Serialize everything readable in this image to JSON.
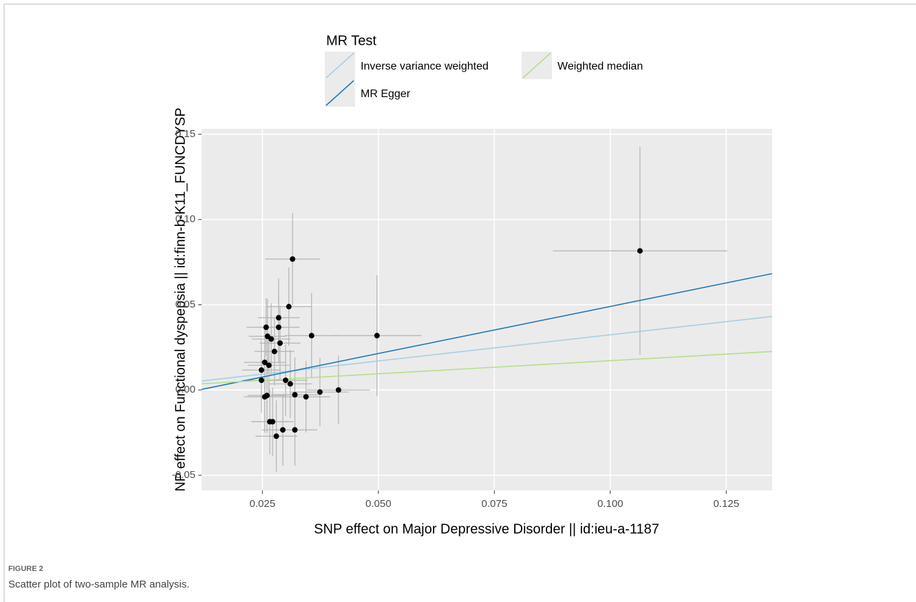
{
  "chart_data": {
    "type": "scatter",
    "legend_title": "MR Test",
    "xlabel": "SNP effect on Major Depressive Disorder || id:ieu-a-1187",
    "ylabel": "NP effect on Functional dyspepsia || id:finn-b-K11_FUNCDYSP",
    "xlim": [
      0.0119,
      0.1349
    ],
    "ylim": [
      -0.0589,
      0.1532
    ],
    "xticks": [
      {
        "value": 0.025,
        "label": "0.025"
      },
      {
        "value": 0.05,
        "label": "0.050"
      },
      {
        "value": 0.075,
        "label": "0.075"
      },
      {
        "value": 0.1,
        "label": "0.100"
      },
      {
        "value": 0.125,
        "label": "0.125"
      }
    ],
    "yticks": [
      {
        "value": -0.05,
        "label": "-0.05"
      },
      {
        "value": 0,
        "label": "0.00"
      },
      {
        "value": 0.05,
        "label": "0.05"
      },
      {
        "value": 0.1,
        "label": "0.10"
      },
      {
        "value": 0.15,
        "label": "0.15"
      }
    ],
    "grid": true,
    "point_color": "#000000",
    "errorbar_color": "#b3b3b3",
    "x": [
      0.0248,
      0.0248,
      0.0255,
      0.0258,
      0.0261,
      0.0255,
      0.026,
      0.0264,
      0.0266,
      0.0269,
      0.0272,
      0.0276,
      0.028,
      0.0285,
      0.0285,
      0.0288,
      0.0294,
      0.03,
      0.0307,
      0.031,
      0.0315,
      0.032,
      0.032,
      0.0344,
      0.0356,
      0.0374,
      0.0414,
      0.0497,
      0.1064
    ],
    "y": [
      0.0117,
      0.0057,
      0.0162,
      0.0368,
      0.0315,
      -0.004,
      -0.0032,
      0.0145,
      -0.0186,
      0.0299,
      -0.0186,
      0.0226,
      -0.0271,
      0.0368,
      0.0424,
      0.0275,
      -0.0234,
      0.0057,
      0.0489,
      0.0036,
      0.0768,
      -0.0234,
      -0.0028,
      -0.004,
      0.0319,
      -0.0012,
      0.0,
      0.0319,
      0.0816
    ],
    "xerr": [
      0.0042,
      0.004,
      0.0045,
      0.0042,
      0.004,
      0.0045,
      0.0042,
      0.0045,
      0.004,
      0.0042,
      0.0045,
      0.0043,
      0.0045,
      0.0045,
      0.0045,
      0.0044,
      0.0045,
      0.0047,
      0.0048,
      0.0047,
      0.0059,
      0.0048,
      0.005,
      0.0052,
      0.0058,
      0.0062,
      0.0068,
      0.0096,
      0.0188
    ],
    "yerr": [
      0.018,
      0.019,
      0.02,
      0.017,
      0.022,
      0.021,
      0.022,
      0.019,
      0.019,
      0.021,
      0.02,
      0.02,
      0.021,
      0.021,
      0.023,
      0.022,
      0.021,
      0.021,
      0.023,
      0.02,
      0.027,
      0.021,
      0.022,
      0.021,
      0.025,
      0.02,
      0.02,
      0.0355,
      0.061
    ],
    "lines": [
      {
        "name": "Inverse variance weighted",
        "color": "#a6cee3",
        "slope": 0.308,
        "intercept": 0.0016
      },
      {
        "name": "MR Egger",
        "color": "#1f78b4",
        "slope": 0.552,
        "intercept": -0.0062
      },
      {
        "name": "Weighted median",
        "color": "#b2df8a",
        "slope": 0.154,
        "intercept": 0.0018
      }
    ]
  },
  "figure_label": "FIGURE 2",
  "caption": "Scatter plot of two-sample MR analysis."
}
